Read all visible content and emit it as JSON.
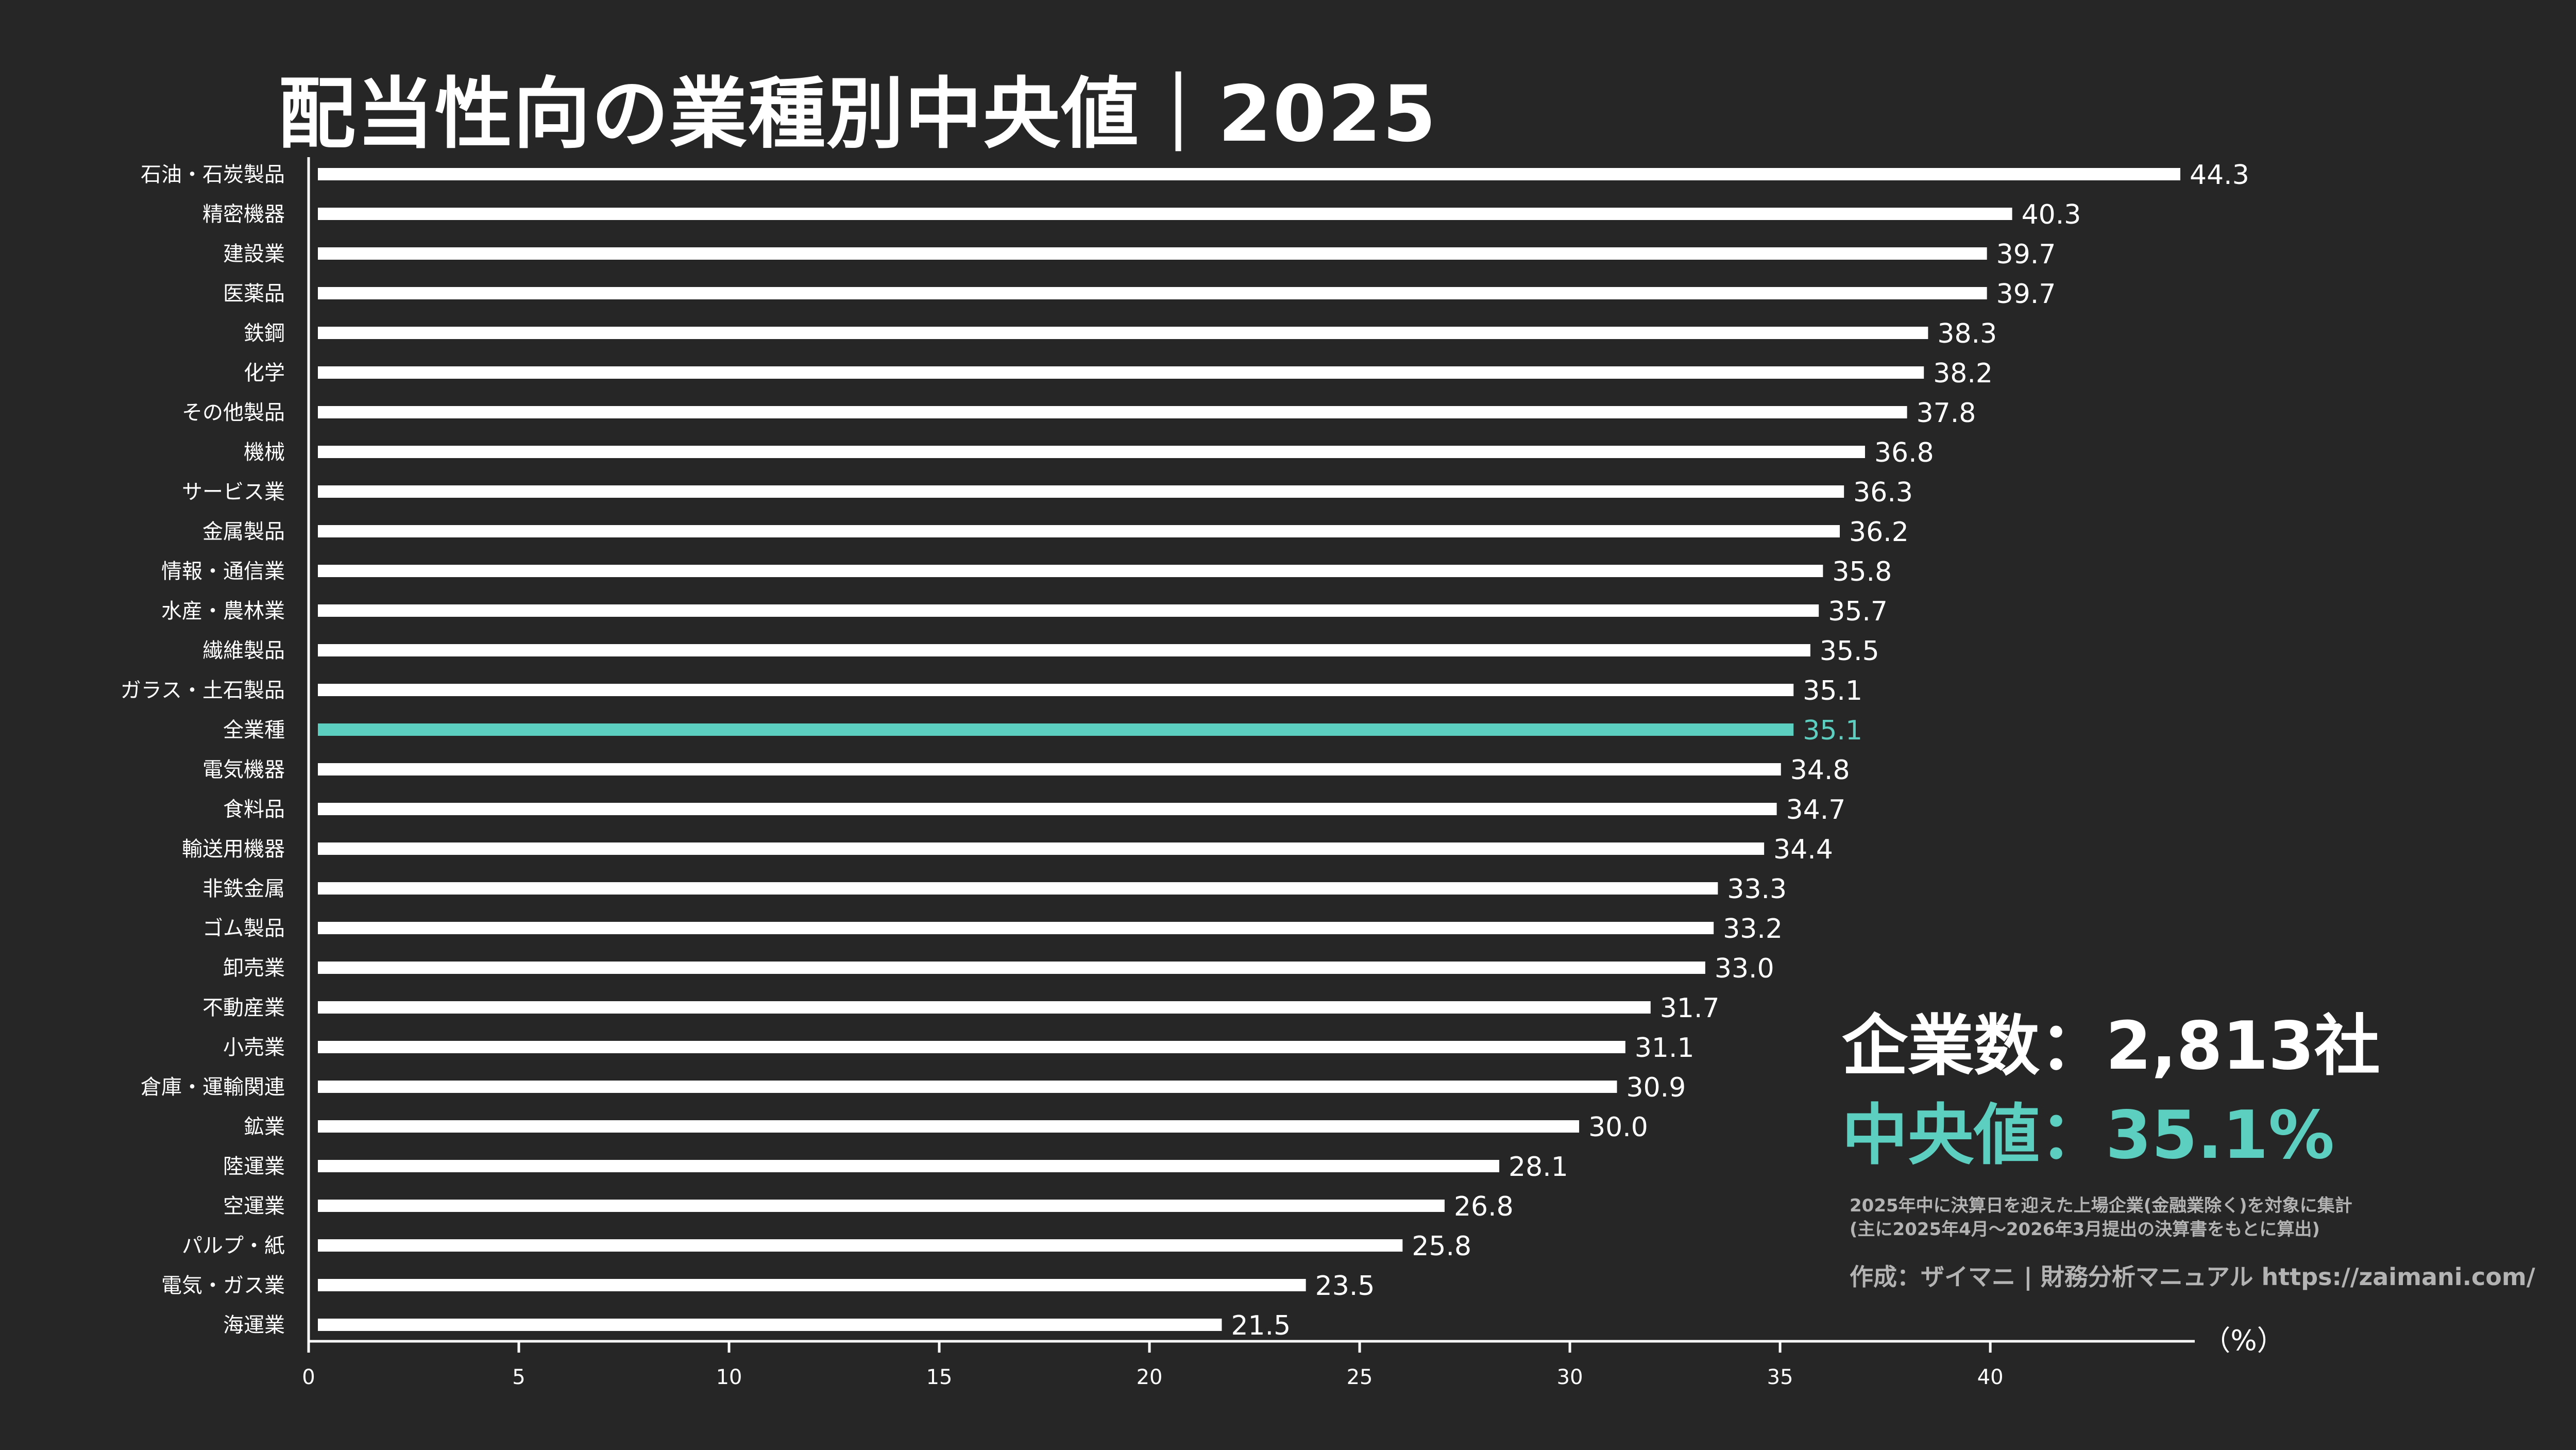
{
  "title": "配当性向の業種別中央値｜2025",
  "summary": {
    "count_text": "企業数：2,813社",
    "median_text": "中央値：35.1%"
  },
  "note": {
    "line1": "2025年中に決算日を迎えた上場企業(金融業除く)を対象に集計",
    "line2": "(主に2025年4月〜2026年3月提出の決算書をもとに算出)"
  },
  "credit": "作成：ザイマニ | 財務分析マニュアル https://zaimani.com/",
  "colors": {
    "background": "#262626",
    "bar": "#ffffff",
    "highlight": "#5ccfc1",
    "text": "#ffffff",
    "muted": "#b3b3b3"
  },
  "chart_data": {
    "type": "bar",
    "orientation": "horizontal",
    "categories": [
      "石油・石炭製品",
      "精密機器",
      "建設業",
      "医薬品",
      "鉄鋼",
      "化学",
      "その他製品",
      "機械",
      "サービス業",
      "金属製品",
      "情報・通信業",
      "水産・農林業",
      "繊維製品",
      "ガラス・土石製品",
      "全業種",
      "電気機器",
      "食料品",
      "輸送用機器",
      "非鉄金属",
      "ゴム製品",
      "卸売業",
      "不動産業",
      "小売業",
      "倉庫・運輸関連",
      "鉱業",
      "陸運業",
      "空運業",
      "パルプ・紙",
      "電気・ガス業",
      "海運業"
    ],
    "values": [
      44.3,
      40.3,
      39.7,
      39.7,
      38.3,
      38.2,
      37.8,
      36.8,
      36.3,
      36.2,
      35.8,
      35.7,
      35.5,
      35.1,
      35.1,
      34.8,
      34.7,
      34.4,
      33.3,
      33.2,
      33.0,
      31.7,
      31.1,
      30.9,
      30.0,
      28.1,
      26.8,
      25.8,
      23.5,
      21.5
    ],
    "value_labels": [
      "44.3",
      "40.3",
      "39.7",
      "39.7",
      "38.3",
      "38.2",
      "37.8",
      "36.8",
      "36.3",
      "36.2",
      "35.8",
      "35.7",
      "35.5",
      "35.1",
      "35.1",
      "34.8",
      "34.7",
      "34.4",
      "33.3",
      "33.2",
      "33.0",
      "31.7",
      "31.1",
      "30.9",
      "30.0",
      "28.1",
      "26.8",
      "25.8",
      "23.5",
      "21.5"
    ],
    "highlight_category": "全業種",
    "xlim": [
      0,
      44.3
    ],
    "xticks": [
      0,
      5,
      10,
      15,
      20,
      25,
      30,
      35,
      40
    ],
    "xtick_labels": [
      "0",
      "5",
      "10",
      "15",
      "20",
      "25",
      "30",
      "35",
      "40"
    ],
    "xlabel": "（%）",
    "grid": false
  }
}
